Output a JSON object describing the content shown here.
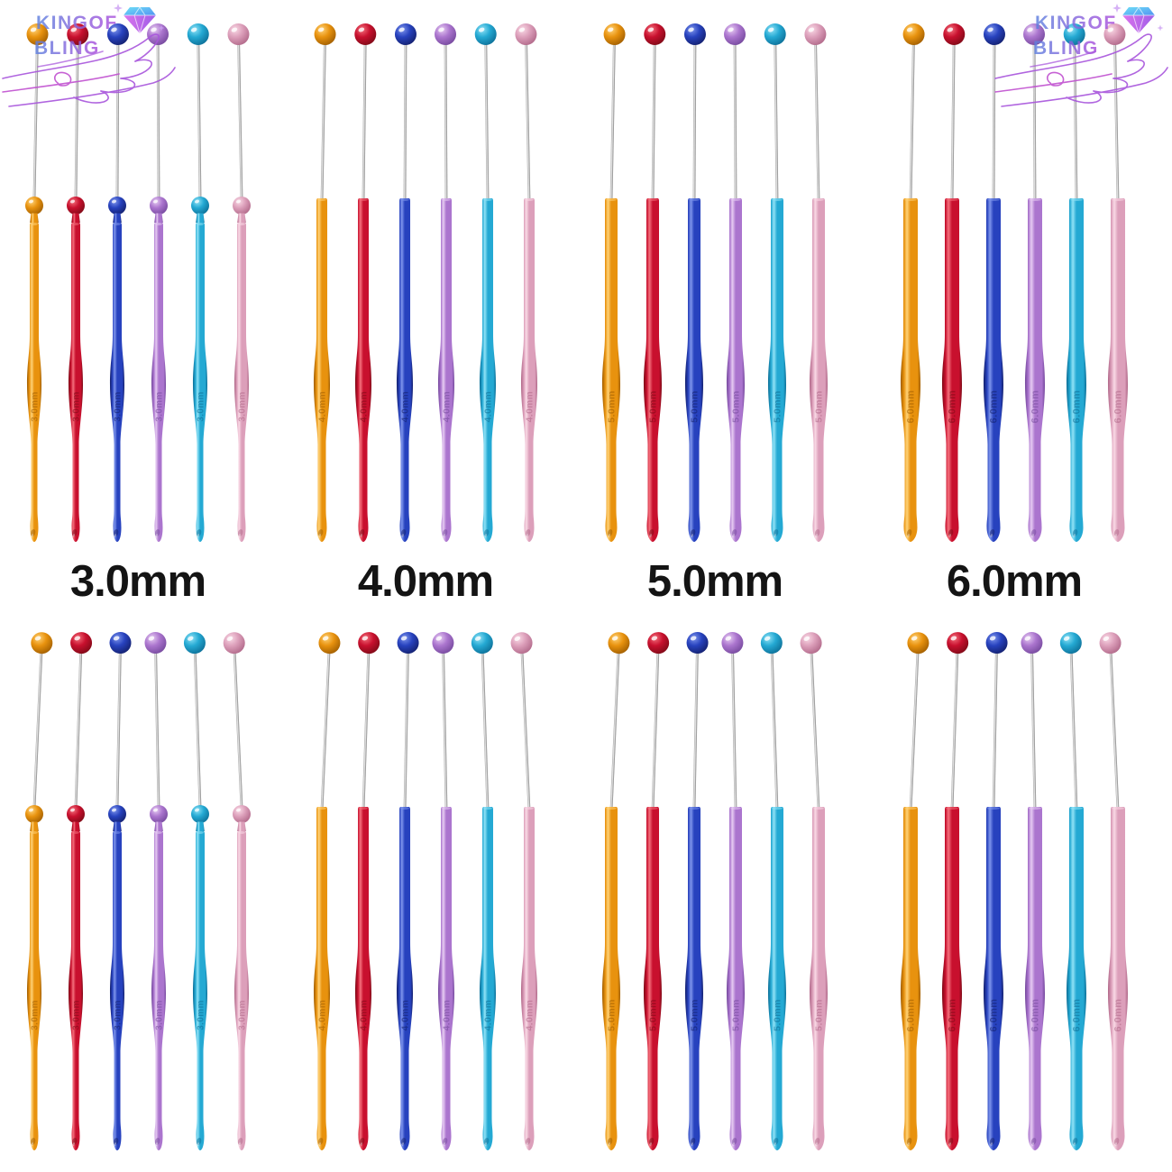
{
  "brand": {
    "line1": "KINGOF",
    "line2": "BLING",
    "gradient_start": "#5E82DF",
    "gradient_end": "#AC4EDC",
    "sparkle_color": "#CDA0F4",
    "hand_color": "#A855DC",
    "diamond_top_color": "#4ED9F5",
    "diamond_bottom_color": "#8A3BE4"
  },
  "sizes": [
    {
      "label": "3.0mm",
      "mm": 3,
      "engraving": "3.0mm",
      "has_stopper_ball": true
    },
    {
      "label": "4.0mm",
      "mm": 4,
      "engraving": "4.0mm",
      "has_stopper_ball": false
    },
    {
      "label": "5.0mm",
      "mm": 5,
      "engraving": "5.0mm",
      "has_stopper_ball": false
    },
    {
      "label": "6.0mm",
      "mm": 6,
      "engraving": "6.0mm",
      "has_stopper_ball": false
    }
  ],
  "hook_colors": [
    {
      "name": "gold",
      "light": "#FFD277",
      "main": "#E8920E",
      "dark": "#9E5C00"
    },
    {
      "name": "red",
      "light": "#F4707C",
      "main": "#C8102E",
      "dark": "#7C0A16"
    },
    {
      "name": "blue",
      "light": "#7E95EC",
      "main": "#2742BE",
      "dark": "#131F6B"
    },
    {
      "name": "purple",
      "light": "#E6CBF2",
      "main": "#AB75CE",
      "dark": "#74489C"
    },
    {
      "name": "teal",
      "light": "#90E2F6",
      "main": "#24A9D3",
      "dark": "#0C6D95"
    },
    {
      "name": "pink",
      "light": "#F9D9E5",
      "main": "#DC9FBA",
      "dark": "#AF6687"
    }
  ],
  "arrangement": {
    "rows": 2,
    "groups_per_row": 4,
    "hooks_per_group": 6,
    "wire_color": "#c9c9c9"
  }
}
